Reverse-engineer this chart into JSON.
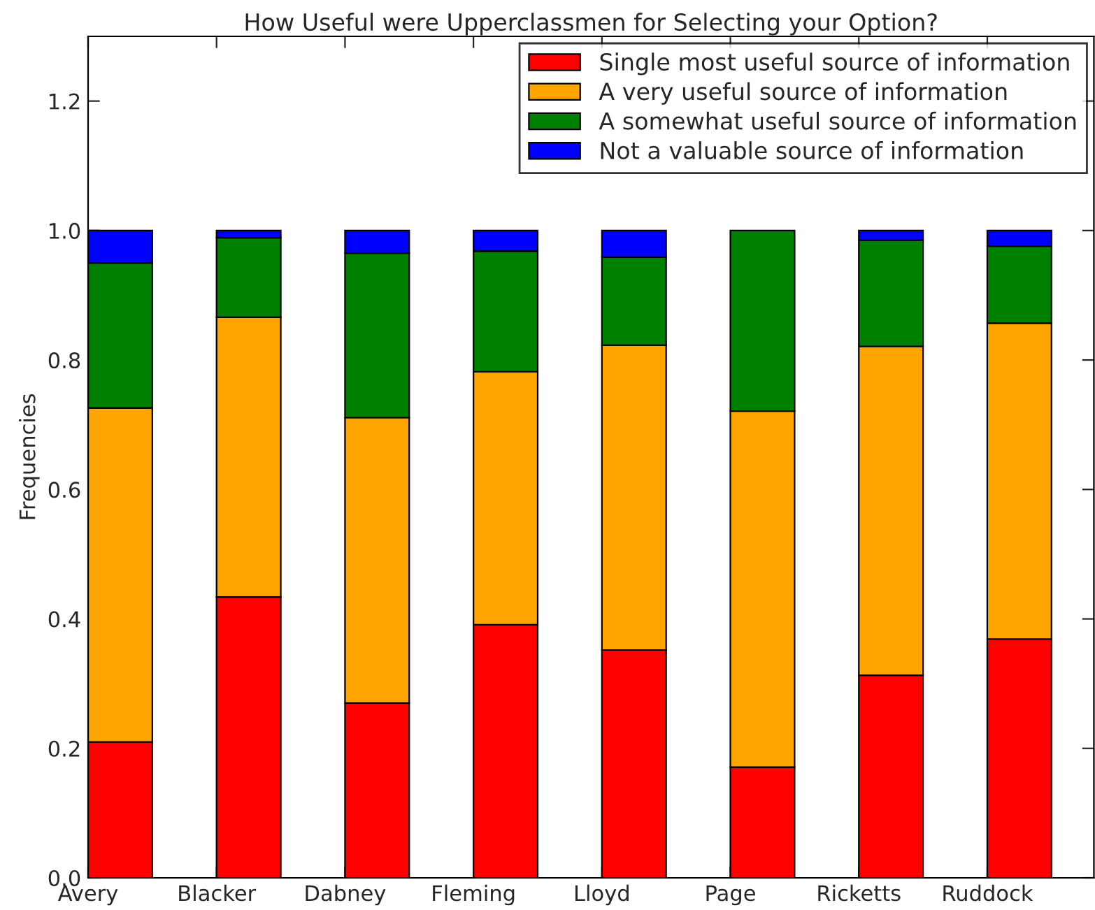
{
  "chart_data": {
    "type": "bar",
    "title": "How Useful were Upperclassmen for Selecting your Option?",
    "ylabel": "Frequencies",
    "categories": [
      "Avery",
      "Blacker",
      "Dabney",
      "Fleming",
      "Lloyd",
      "Page",
      "Ricketts",
      "Ruddock"
    ],
    "stacked": true,
    "series": [
      {
        "name": "Single most useful source of information",
        "color": "#ff0000",
        "values": [
          0.21,
          0.434,
          0.27,
          0.391,
          0.352,
          0.171,
          0.313,
          0.369
        ]
      },
      {
        "name": "A very useful source of information",
        "color": "#ffa500",
        "values": [
          0.516,
          0.432,
          0.441,
          0.391,
          0.471,
          0.55,
          0.508,
          0.488
        ]
      },
      {
        "name": "A somewhat useful source of information",
        "color": "#008000",
        "values": [
          0.224,
          0.123,
          0.254,
          0.186,
          0.136,
          0.279,
          0.164,
          0.119
        ]
      },
      {
        "name": "Not a valuable source of information",
        "color": "#0000ff",
        "values": [
          0.05,
          0.011,
          0.035,
          0.032,
          0.041,
          null,
          0.015,
          0.024
        ]
      }
    ],
    "ylim": [
      0,
      1.3
    ],
    "yticks": [
      {
        "value": 0,
        "label": "0.0"
      },
      {
        "value": 0.2,
        "label": "0.2"
      },
      {
        "value": 0.4,
        "label": "0.4"
      },
      {
        "value": 0.6,
        "label": "0.6"
      },
      {
        "value": 0.8,
        "label": "0.8"
      },
      {
        "value": 1.0,
        "label": "1.0"
      },
      {
        "value": 1.2,
        "label": "1.2"
      }
    ],
    "grid": false,
    "legend": "top right"
  }
}
